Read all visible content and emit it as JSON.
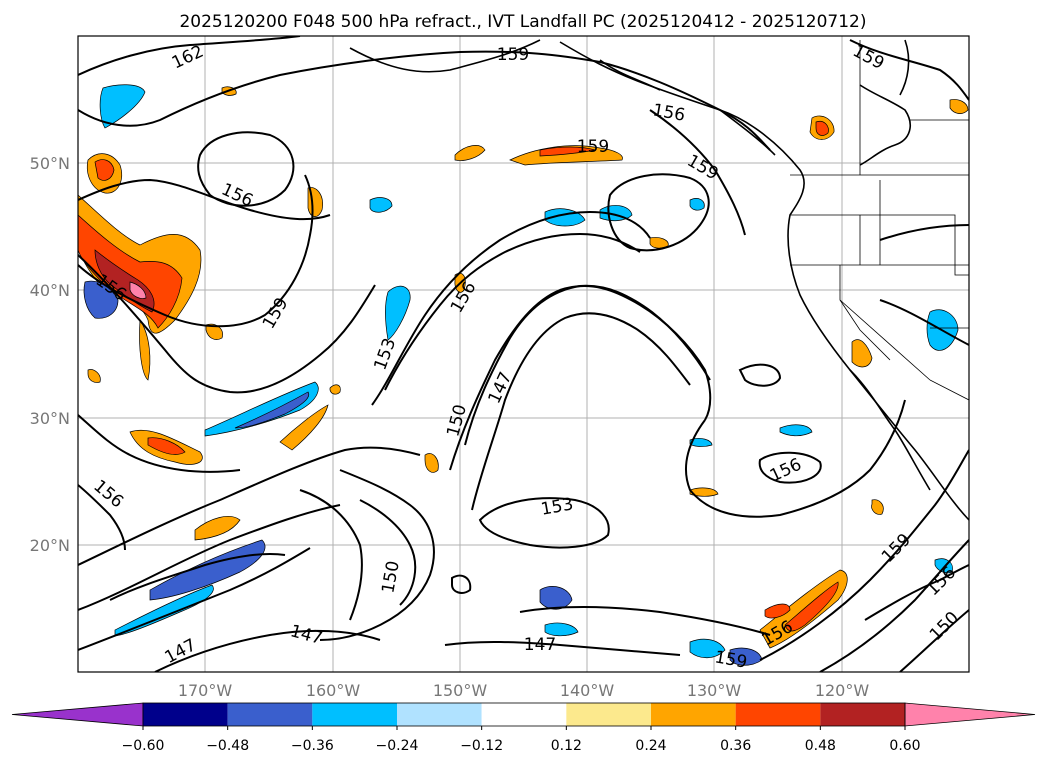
{
  "title": "2025120200 F048 500 hPa refract., IVT Landfall PC (2025120412 - 2025120712)",
  "map": {
    "latitude_labels": [
      "50°N",
      "40°N",
      "30°N",
      "20°N"
    ],
    "longitude_labels": [
      "170°W",
      "160°W",
      "150°W",
      "140°W",
      "130°W",
      "120°W"
    ],
    "contour_labels": [
      {
        "text": "162"
      },
      {
        "text": "159"
      },
      {
        "text": "159"
      },
      {
        "text": "156"
      },
      {
        "text": "159"
      },
      {
        "text": "159"
      },
      {
        "text": "156"
      },
      {
        "text": "156"
      },
      {
        "text": "159"
      },
      {
        "text": "156"
      },
      {
        "text": "153"
      },
      {
        "text": "150"
      },
      {
        "text": "147"
      },
      {
        "text": "156"
      },
      {
        "text": "153"
      },
      {
        "text": "150"
      },
      {
        "text": "147"
      },
      {
        "text": "147"
      },
      {
        "text": "147"
      },
      {
        "text": "156"
      },
      {
        "text": "159"
      },
      {
        "text": "156"
      },
      {
        "text": "159"
      },
      {
        "text": "156"
      },
      {
        "text": "150"
      }
    ]
  },
  "colorbar": {
    "ticks": [
      "−0.60",
      "−0.48",
      "−0.36",
      "−0.24",
      "−0.12",
      "0.12",
      "0.24",
      "0.36",
      "0.48",
      "0.60"
    ],
    "colors": [
      "#9932cc",
      "#00008b",
      "#3a5fcd",
      "#00bfff",
      "#b0e2ff",
      "#ffffff",
      "#fce98d",
      "#ffa500",
      "#ff4500",
      "#b22222",
      "#ff82ab"
    ]
  }
}
